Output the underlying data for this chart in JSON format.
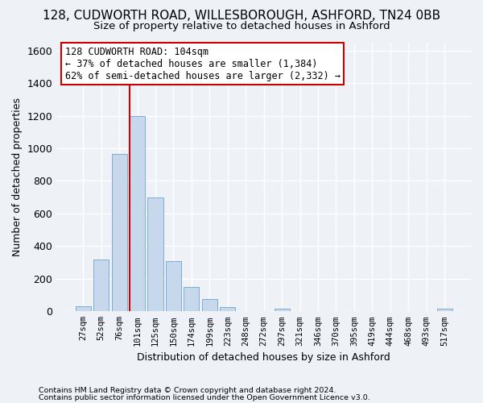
{
  "title": "128, CUDWORTH ROAD, WILLESBOROUGH, ASHFORD, TN24 0BB",
  "subtitle": "Size of property relative to detached houses in Ashford",
  "xlabel": "Distribution of detached houses by size in Ashford",
  "ylabel": "Number of detached properties",
  "footnote1": "Contains HM Land Registry data © Crown copyright and database right 2024.",
  "footnote2": "Contains public sector information licensed under the Open Government Licence v3.0.",
  "bar_labels": [
    "27sqm",
    "52sqm",
    "76sqm",
    "101sqm",
    "125sqm",
    "150sqm",
    "174sqm",
    "199sqm",
    "223sqm",
    "248sqm",
    "272sqm",
    "297sqm",
    "321sqm",
    "346sqm",
    "370sqm",
    "395sqm",
    "419sqm",
    "444sqm",
    "468sqm",
    "493sqm",
    "517sqm"
  ],
  "bar_values": [
    30,
    320,
    965,
    1200,
    700,
    310,
    150,
    75,
    25,
    0,
    0,
    18,
    0,
    0,
    0,
    0,
    0,
    0,
    0,
    0,
    15
  ],
  "bar_color": "#c8d8ec",
  "bar_edge_color": "#7aaed0",
  "vline_color": "#cc0000",
  "ylim": [
    0,
    1650
  ],
  "yticks": [
    0,
    200,
    400,
    600,
    800,
    1000,
    1200,
    1400,
    1600
  ],
  "annotation_line1": "128 CUDWORTH ROAD: 104sqm",
  "annotation_line2": "← 37% of detached houses are smaller (1,384)",
  "annotation_line3": "62% of semi-detached houses are larger (2,332) →",
  "box_color": "#ffffff",
  "box_edge_color": "#cc0000",
  "background_color": "#eef2f7",
  "grid_color": "#ffffff",
  "title_fontsize": 11,
  "subtitle_fontsize": 9.5
}
